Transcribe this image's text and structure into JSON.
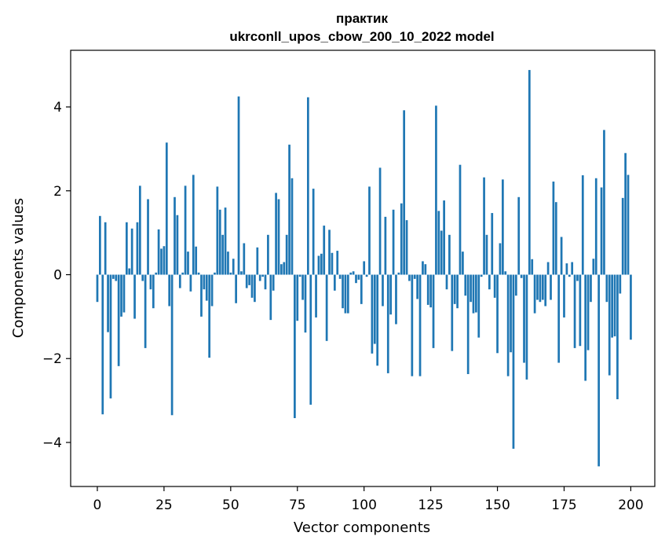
{
  "chart_data": {
    "type": "bar",
    "title_line1": "практик",
    "title_line2": "ukrconll_upos_cbow_200_10_2022 model",
    "xlabel": "Vector components",
    "ylabel": "Components values",
    "xlim": [
      -10,
      209
    ],
    "ylim": [
      -5.05,
      5.35
    ],
    "xticks": [
      0,
      25,
      50,
      75,
      100,
      125,
      150,
      175,
      200
    ],
    "yticks": [
      -4,
      -2,
      0,
      2,
      4
    ],
    "bar_color": "#1f77b4",
    "values": [
      -0.65,
      1.4,
      -3.33,
      1.25,
      -1.37,
      -2.95,
      -0.1,
      -0.15,
      -2.18,
      -1.0,
      -0.9,
      1.25,
      0.15,
      1.1,
      -1.05,
      1.25,
      2.12,
      -0.15,
      -1.75,
      1.8,
      -0.35,
      -0.8,
      0.05,
      1.08,
      0.62,
      0.68,
      3.15,
      -0.75,
      -3.35,
      1.85,
      1.42,
      -0.32,
      0.05,
      2.12,
      0.55,
      -0.4,
      2.38,
      0.67,
      0.05,
      -1.0,
      -0.35,
      -0.62,
      -1.98,
      -0.75,
      0.05,
      2.1,
      1.55,
      0.95,
      1.6,
      0.55,
      0.05,
      0.38,
      -0.68,
      4.25,
      0.08,
      0.75,
      -0.32,
      -0.25,
      -0.55,
      -0.65,
      0.65,
      -0.15,
      -0.05,
      -0.35,
      0.95,
      -1.08,
      -0.38,
      1.95,
      1.8,
      0.25,
      0.3,
      0.95,
      3.1,
      2.3,
      -3.42,
      -1.1,
      -0.05,
      -0.6,
      -1.38,
      4.23,
      -3.1,
      2.05,
      -1.02,
      0.45,
      0.5,
      1.17,
      -1.58,
      1.07,
      0.52,
      -0.38,
      0.57,
      -0.1,
      -0.8,
      -0.92,
      -0.92,
      0.05,
      0.08,
      -0.2,
      -0.12,
      -0.7,
      0.32,
      -0.05,
      2.1,
      -1.88,
      -1.65,
      -2.17,
      2.55,
      -0.75,
      1.38,
      -2.35,
      -0.95,
      1.55,
      -1.18,
      0.05,
      1.7,
      3.92,
      1.3,
      -0.15,
      -2.42,
      -0.1,
      -0.58,
      -2.42,
      0.32,
      0.25,
      -0.72,
      -0.78,
      -1.75,
      4.03,
      1.52,
      1.05,
      1.77,
      -0.35,
      0.95,
      -1.82,
      -0.7,
      -0.8,
      2.62,
      0.55,
      -0.5,
      -2.37,
      -0.65,
      -0.92,
      -0.9,
      -1.5,
      -0.05,
      2.32,
      0.95,
      -0.35,
      1.47,
      -0.55,
      -1.87,
      0.75,
      2.27,
      0.08,
      -2.42,
      -1.85,
      -4.15,
      -0.5,
      1.85,
      -0.08,
      -2.1,
      -2.5,
      4.88,
      0.37,
      -0.92,
      -0.6,
      -0.65,
      -0.6,
      -0.75,
      0.3,
      -0.6,
      2.22,
      1.73,
      -2.1,
      0.9,
      -1.02,
      0.27,
      -0.05,
      0.3,
      -1.75,
      -0.15,
      -1.7,
      2.37,
      -2.53,
      -1.8,
      -0.65,
      0.38,
      2.3,
      -4.57,
      2.08,
      3.45,
      -0.65,
      -2.4,
      -1.5,
      -1.47,
      -2.97,
      -0.45,
      1.83,
      2.9,
      2.38,
      -1.55
    ]
  }
}
